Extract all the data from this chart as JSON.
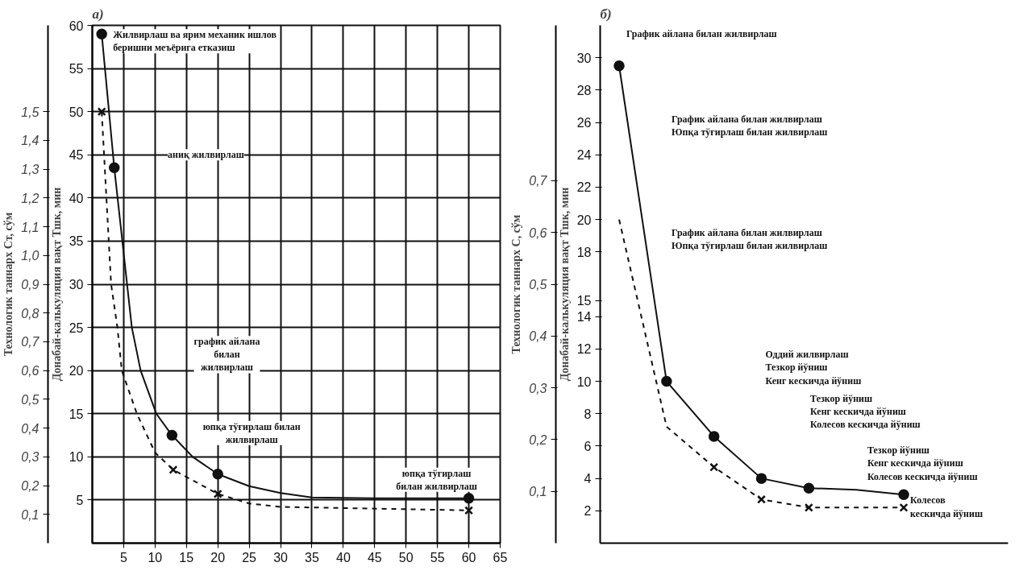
{
  "chart_data": [
    {
      "type": "line",
      "title": "а)",
      "ylabel": "Донабай-калькуляция вақт Tшк, мин",
      "y2label": "Технологик таннарх Cт, сўм",
      "xlim": [
        0,
        65
      ],
      "xticks": [
        5,
        10,
        15,
        20,
        25,
        30,
        35,
        40,
        45,
        50,
        55,
        60,
        65
      ],
      "ylim": [
        0,
        60
      ],
      "yticks": [
        5,
        10,
        15,
        20,
        25,
        30,
        35,
        40,
        45,
        50,
        55,
        60
      ],
      "y2lim": [
        0,
        1.8
      ],
      "y2ticks": [
        {
          "value": 0.1,
          "label": "0,1"
        },
        {
          "value": 0.2,
          "label": "0,2"
        },
        {
          "value": 0.3,
          "label": "0,3"
        },
        {
          "value": 0.4,
          "label": "0,4"
        },
        {
          "value": 0.5,
          "label": "0,5"
        },
        {
          "value": 0.6,
          "label": "0,6"
        },
        {
          "value": 0.7,
          "label": "0,7"
        },
        {
          "value": 0.8,
          "label": "0,8"
        },
        {
          "value": 0.9,
          "label": "0,9"
        },
        {
          "value": 1.0,
          "label": "1,0"
        },
        {
          "value": 1.1,
          "label": "1,1"
        },
        {
          "value": 1.2,
          "label": "1,2"
        },
        {
          "value": 1.3,
          "label": "1,3"
        },
        {
          "value": 1.4,
          "label": "1,4"
        },
        {
          "value": 1.5,
          "label": "1,5"
        }
      ],
      "grid": true,
      "series": [
        {
          "color": "#111111",
          "line_style": "solid",
          "x": [
            1.5,
            3.5,
            6.3,
            7.7,
            10.2,
            12.7,
            16,
            20,
            25,
            30,
            35,
            45,
            60
          ],
          "values": [
            59,
            43.5,
            25,
            20,
            15,
            12.5,
            10,
            8,
            6.6,
            5.8,
            5.3,
            5.2,
            5.2
          ]
        },
        {
          "color": "#111111",
          "line_style": "dashed",
          "x": [
            1.5,
            3,
            4,
            4.7,
            7.1,
            10,
            12.9,
            20,
            25,
            30,
            60
          ],
          "values": [
            50,
            30,
            25,
            20,
            15,
            10.5,
            8.5,
            5.7,
            4.6,
            4.2,
            3.8
          ]
        },
        {
          "type": "scatter",
          "color": "#111111",
          "marker": "circle",
          "x": [
            1.5,
            3.5,
            12.7,
            20,
            60
          ],
          "values": [
            59,
            43.5,
            12.5,
            8,
            5.2
          ]
        },
        {
          "type": "scatter",
          "color": "#111111",
          "marker": "cross",
          "x": [
            1.5,
            12.9,
            20,
            60
          ],
          "values": [
            50,
            8.5,
            5.7,
            3.8
          ]
        }
      ],
      "annotations": [
        {
          "text": "Жилвирлаш ва ярим механик ишлов\nберишни меъёрига етказиш",
          "x": 1.5,
          "y": 59
        },
        "аниқ жилвирлаш",
        "график айлана\nбилан\nжилвирлаш",
        {
          "text": "юпқа тўғирлаш билан\nжилвирлаш",
          "x": 20,
          "y": 8
        },
        {
          "text": "юпқа тўғирлаш\nбилан жилвирлаш",
          "x": 60,
          "y": 5.2
        }
      ]
    },
    {
      "type": "line",
      "title": "б)",
      "ylabel": "Донабай-калькуляция вақт Tшк, мин",
      "y2label": "Технологик таннарх C, сўм",
      "categories": [
        null,
        null,
        null,
        null,
        null,
        null,
        null
      ],
      "ylim": [
        0,
        32
      ],
      "yticks": [
        2,
        4,
        6,
        8,
        10,
        12,
        14,
        15,
        18,
        20,
        22,
        24,
        26,
        28,
        30
      ],
      "y2lim": [
        0,
        1.0
      ],
      "y2ticks": [
        {
          "value": 0.1,
          "label": "0,1"
        },
        {
          "value": 0.2,
          "label": "0,2"
        },
        {
          "value": 0.3,
          "label": "0,3"
        },
        {
          "value": 0.4,
          "label": "0,4"
        },
        {
          "value": 0.5,
          "label": "0,5"
        },
        {
          "value": 0.6,
          "label": "0,6"
        },
        {
          "value": 0.7,
          "label": "0,7"
        }
      ],
      "tick_labels": "y",
      "series": [
        {
          "color": "#111111",
          "line_style": "solid",
          "values": [
            29.5,
            10,
            6.6,
            4.0,
            3.4,
            3.3,
            3.0
          ]
        },
        {
          "color": "#111111",
          "line_style": "dashed",
          "values": [
            20,
            7.2,
            4.7,
            2.7,
            2.2,
            2.2,
            2.2
          ]
        },
        {
          "type": "scatter",
          "color": "#111111",
          "marker": "circle",
          "values": [
            29.5,
            10,
            6.6,
            4.0,
            3.4,
            null,
            3.0
          ]
        },
        {
          "type": "scatter",
          "color": "#111111",
          "marker": "cross",
          "values": [
            null,
            null,
            4.7,
            2.7,
            2.2,
            null,
            2.2
          ]
        }
      ],
      "annotations": [
        "График айлана билан жилвирлаш",
        "График айлана билан жилвирлаш\nЮпқа тўғирлаш билан жилвирлаш",
        "График айлана билан жилвирлаш\nЮпқа тўғирлаш билан жилвирлаш",
        "Оддий жилвирлаш\nТезкор йўниш\nКенг кескичда йўниш",
        "Тезкор йўниш\nКенг кескичда йўниш\nКолесов кескичда йўниш",
        "Тезкор йўниш\nКенг кескичда йўниш\nКолесов кескичда йўниш",
        "Колесов\nкескичда йўниш"
      ]
    }
  ]
}
